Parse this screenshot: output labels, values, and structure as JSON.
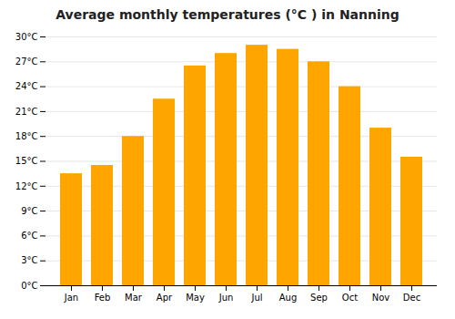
{
  "chart_data": {
    "type": "bar",
    "title": "Average monthly temperatures (°C ) in Nanning",
    "categories": [
      "Jan",
      "Feb",
      "Mar",
      "Apr",
      "May",
      "Jun",
      "Jul",
      "Aug",
      "Sep",
      "Oct",
      "Nov",
      "Dec"
    ],
    "values": [
      13.5,
      14.5,
      18.0,
      22.5,
      26.5,
      28.0,
      29.0,
      28.5,
      27.0,
      24.0,
      19.0,
      15.5
    ],
    "color": "#FFA500",
    "ylim": [
      0,
      30
    ],
    "yticks": [
      {
        "value": 0,
        "label": "0°C"
      },
      {
        "value": 3,
        "label": "3°C"
      },
      {
        "value": 6,
        "label": "6°C"
      },
      {
        "value": 9,
        "label": "9°C"
      },
      {
        "value": 12,
        "label": "12°C"
      },
      {
        "value": 15,
        "label": "15°C"
      },
      {
        "value": 18,
        "label": "18°C"
      },
      {
        "value": 21,
        "label": "21°C"
      },
      {
        "value": 24,
        "label": "24°C"
      },
      {
        "value": 27,
        "label": "27°C"
      },
      {
        "value": 30,
        "label": "30°C"
      }
    ],
    "grid": true
  }
}
